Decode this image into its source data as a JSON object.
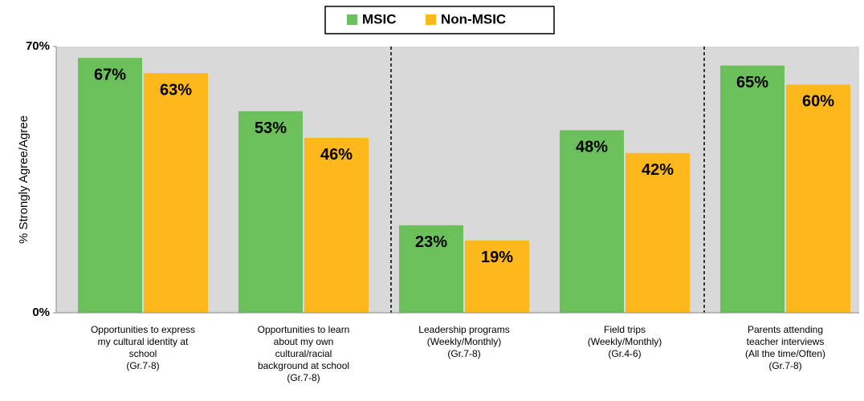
{
  "chart_data": {
    "type": "bar",
    "y_label": "% Strongly Agree/Agree",
    "categories": [
      [
        "Opportunities to express",
        "my cultural identity at",
        "school",
        "(Gr.7-8)"
      ],
      [
        "Opportunities to learn",
        "about my own",
        "cultural/racial",
        "background at school",
        "(Gr.7-8)"
      ],
      [
        "Leadership programs",
        "(Weekly/Monthly)",
        "(Gr.7-8)"
      ],
      [
        "Field trips",
        "(Weekly/Monthly)",
        "(Gr.4-6)"
      ],
      [
        "Parents attending",
        "teacher interviews",
        "(All the time/Often)",
        "(Gr.7-8)"
      ]
    ],
    "series": [
      {
        "name": "MSIC",
        "color": "#6cc05c",
        "values": [
          67,
          53,
          23,
          48,
          65
        ],
        "value_labels": [
          "67%",
          "53%",
          "23%",
          "48%",
          "65%"
        ]
      },
      {
        "name": "Non-MSIC",
        "color": "#ffb81c",
        "values": [
          63,
          46,
          19,
          42,
          60
        ],
        "value_labels": [
          "63%",
          "46%",
          "19%",
          "42%",
          "60%"
        ]
      }
    ],
    "ylim": [
      0,
      70
    ],
    "yticks": [
      {
        "value": 0,
        "label": "0%"
      },
      {
        "value": 70,
        "label": "70%"
      }
    ],
    "legend": "top"
  }
}
